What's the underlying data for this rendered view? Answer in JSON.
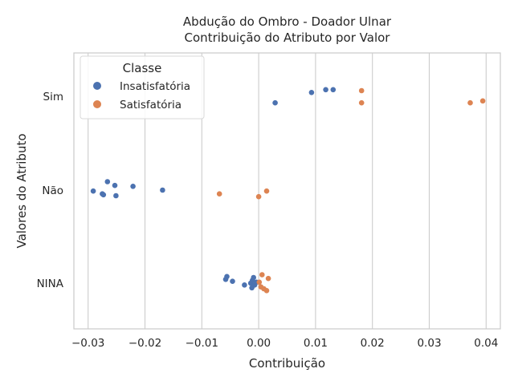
{
  "chart_data": {
    "type": "scatter",
    "title_line1": "Abdução do Ombro - Doador Ulnar",
    "title_line2": "Contribuição do Atributo por Valor",
    "xlabel": "Contribuição",
    "ylabel": "Valores do Atributo",
    "xlim": [
      -0.0325,
      0.0425
    ],
    "x_ticks": [
      -0.03,
      -0.02,
      -0.01,
      0.0,
      0.01,
      0.02,
      0.03,
      0.04
    ],
    "x_tick_labels": [
      "−0.03",
      "−0.02",
      "−0.01",
      "0.00",
      "0.01",
      "0.02",
      "0.03",
      "0.04"
    ],
    "categories": [
      "Sim",
      "Não",
      "NINA"
    ],
    "grid": true,
    "legend": {
      "title": "Classe",
      "placement": "upper-left"
    },
    "series": [
      {
        "name": "Insatisfatória",
        "color": "#4c72b0",
        "points": [
          {
            "cat": "Sim",
            "x": 0.0029,
            "jitter": 0.07
          },
          {
            "cat": "Sim",
            "x": 0.0093,
            "jitter": -0.04
          },
          {
            "cat": "Sim",
            "x": 0.0118,
            "jitter": -0.07
          },
          {
            "cat": "Sim",
            "x": 0.0131,
            "jitter": -0.07
          },
          {
            "cat": "Não",
            "x": -0.0291,
            "jitter": 0.01
          },
          {
            "cat": "Não",
            "x": -0.0275,
            "jitter": 0.04
          },
          {
            "cat": "Não",
            "x": -0.0273,
            "jitter": 0.05
          },
          {
            "cat": "Não",
            "x": -0.0266,
            "jitter": -0.09
          },
          {
            "cat": "Não",
            "x": -0.0253,
            "jitter": -0.05
          },
          {
            "cat": "Não",
            "x": -0.0251,
            "jitter": 0.06
          },
          {
            "cat": "Não",
            "x": -0.0221,
            "jitter": -0.04
          },
          {
            "cat": "Não",
            "x": -0.0169,
            "jitter": 0.0
          },
          {
            "cat": "NINA",
            "x": -0.0058,
            "jitter": -0.04
          },
          {
            "cat": "NINA",
            "x": -0.0056,
            "jitter": -0.07
          },
          {
            "cat": "NINA",
            "x": -0.0046,
            "jitter": -0.02
          },
          {
            "cat": "NINA",
            "x": -0.0025,
            "jitter": 0.02
          },
          {
            "cat": "NINA",
            "x": -0.0014,
            "jitter": 0.0
          },
          {
            "cat": "NINA",
            "x": -0.0012,
            "jitter": 0.05
          },
          {
            "cat": "NINA",
            "x": -0.0011,
            "jitter": -0.03
          },
          {
            "cat": "NINA",
            "x": -0.0009,
            "jitter": -0.06
          },
          {
            "cat": "NINA",
            "x": -0.0007,
            "jitter": 0.02
          },
          {
            "cat": "NINA",
            "x": -0.0004,
            "jitter": -0.01
          }
        ]
      },
      {
        "name": "Satisfatória",
        "color": "#dd8452",
        "points": [
          {
            "cat": "Sim",
            "x": 0.0181,
            "jitter": -0.06
          },
          {
            "cat": "Sim",
            "x": 0.0181,
            "jitter": 0.07
          },
          {
            "cat": "Sim",
            "x": 0.0372,
            "jitter": 0.07
          },
          {
            "cat": "Sim",
            "x": 0.0394,
            "jitter": 0.05
          },
          {
            "cat": "Não",
            "x": -0.0069,
            "jitter": 0.04
          },
          {
            "cat": "Não",
            "x": 0.0,
            "jitter": 0.07
          },
          {
            "cat": "Não",
            "x": 0.0014,
            "jitter": 0.01
          },
          {
            "cat": "NINA",
            "x": 0.0001,
            "jitter": -0.01
          },
          {
            "cat": "NINA",
            "x": 0.0004,
            "jitter": 0.04
          },
          {
            "cat": "NINA",
            "x": 0.0006,
            "jitter": -0.09
          },
          {
            "cat": "NINA",
            "x": 0.0009,
            "jitter": 0.06
          },
          {
            "cat": "NINA",
            "x": 0.0014,
            "jitter": 0.08
          },
          {
            "cat": "NINA",
            "x": 0.0017,
            "jitter": -0.05
          }
        ]
      }
    ]
  }
}
